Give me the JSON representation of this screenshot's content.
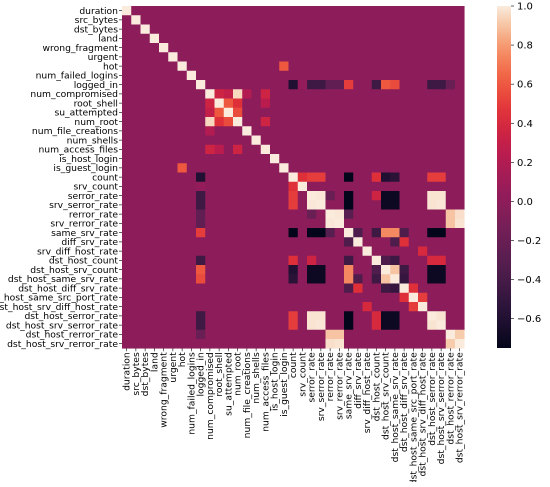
{
  "chart_data": {
    "type": "heatmap",
    "title": "",
    "xlabel": "",
    "ylabel": "",
    "labels": [
      "duration",
      "src_bytes",
      "dst_bytes",
      "land",
      "wrong_fragment",
      "urgent",
      "hot",
      "num_failed_logins",
      "logged_in",
      "num_compromised",
      "root_shell",
      "su_attempted",
      "num_root",
      "num_file_creations",
      "num_shells",
      "num_access_files",
      "is_host_login",
      "is_guest_login",
      "count",
      "srv_count",
      "serror_rate",
      "srv_serror_rate",
      "rerror_rate",
      "srv_rerror_rate",
      "same_srv_rate",
      "diff_srv_rate",
      "srv_diff_host_rate",
      "dst_host_count",
      "dst_host_srv_count",
      "dst_host_same_srv_rate",
      "dst_host_diff_srv_rate",
      "dst_host_same_src_port_rate",
      "dst_host_srv_diff_host_rate",
      "dst_host_serror_rate",
      "dst_host_srv_serror_rate",
      "dst_host_rerror_rate",
      "dst_host_srv_rerror_rate"
    ],
    "colorbar": {
      "min": -0.75,
      "max": 1.0,
      "ticks": [
        1.0,
        0.8,
        0.6,
        0.4,
        0.2,
        0.0,
        -0.2,
        -0.4,
        -0.6
      ],
      "tick_labels": [
        "1.0",
        "0.8",
        "0.6",
        "0.4",
        "0.2",
        "0.0",
        "−0.2",
        "−0.4",
        "−0.6"
      ]
    },
    "correlations": [
      {
        "a": "root_shell",
        "b": "su_attempted",
        "value": 0.6
      },
      {
        "a": "root_shell",
        "b": "num_root",
        "value": 0.45
      },
      {
        "a": "num_compromised",
        "b": "num_root",
        "value": 0.95
      },
      {
        "a": "num_compromised",
        "b": "root_shell",
        "value": 0.35
      },
      {
        "a": "num_compromised",
        "b": "su_attempted",
        "value": 0.3
      },
      {
        "a": "su_attempted",
        "b": "num_root",
        "value": 0.55
      },
      {
        "a": "num_compromised",
        "b": "num_access_files",
        "value": 0.35
      },
      {
        "a": "num_root",
        "b": "num_access_files",
        "value": 0.35
      },
      {
        "a": "root_shell",
        "b": "num_access_files",
        "value": 0.25
      },
      {
        "a": "num_compromised",
        "b": "num_file_creations",
        "value": 0.2
      },
      {
        "a": "hot",
        "b": "is_guest_login",
        "value": 0.6
      },
      {
        "a": "logged_in",
        "b": "count",
        "value": -0.6
      },
      {
        "a": "logged_in",
        "b": "srv_count",
        "value": 0.05
      },
      {
        "a": "logged_in",
        "b": "serror_rate",
        "value": -0.45
      },
      {
        "a": "logged_in",
        "b": "srv_serror_rate",
        "value": -0.45
      },
      {
        "a": "logged_in",
        "b": "rerror_rate",
        "value": -0.25
      },
      {
        "a": "logged_in",
        "b": "srv_rerror_rate",
        "value": -0.25
      },
      {
        "a": "logged_in",
        "b": "same_srv_rate",
        "value": 0.5
      },
      {
        "a": "logged_in",
        "b": "dst_host_count",
        "value": -0.45
      },
      {
        "a": "logged_in",
        "b": "dst_host_srv_count",
        "value": 0.6
      },
      {
        "a": "logged_in",
        "b": "dst_host_same_srv_rate",
        "value": 0.55
      },
      {
        "a": "logged_in",
        "b": "dst_host_serror_rate",
        "value": -0.45
      },
      {
        "a": "logged_in",
        "b": "dst_host_srv_serror_rate",
        "value": -0.45
      },
      {
        "a": "logged_in",
        "b": "dst_host_rerror_rate",
        "value": -0.2
      },
      {
        "a": "count",
        "b": "srv_count",
        "value": 0.45
      },
      {
        "a": "count",
        "b": "serror_rate",
        "value": 0.5
      },
      {
        "a": "count",
        "b": "srv_serror_rate",
        "value": 0.5
      },
      {
        "a": "count",
        "b": "same_srv_rate",
        "value": -0.75
      },
      {
        "a": "count",
        "b": "dst_host_count",
        "value": 0.45
      },
      {
        "a": "count",
        "b": "dst_host_srv_count",
        "value": -0.6
      },
      {
        "a": "count",
        "b": "dst_host_same_srv_rate",
        "value": -0.55
      },
      {
        "a": "count",
        "b": "dst_host_serror_rate",
        "value": 0.5
      },
      {
        "a": "count",
        "b": "dst_host_srv_serror_rate",
        "value": 0.5
      },
      {
        "a": "serror_rate",
        "b": "srv_serror_rate",
        "value": 0.99
      },
      {
        "a": "serror_rate",
        "b": "rerror_rate",
        "value": -0.2
      },
      {
        "a": "serror_rate",
        "b": "same_srv_rate",
        "value": -0.75
      },
      {
        "a": "serror_rate",
        "b": "dst_host_count",
        "value": 0.35
      },
      {
        "a": "serror_rate",
        "b": "dst_host_srv_count",
        "value": -0.7
      },
      {
        "a": "serror_rate",
        "b": "dst_host_same_srv_rate",
        "value": -0.7
      },
      {
        "a": "serror_rate",
        "b": "dst_host_serror_rate",
        "value": 0.98
      },
      {
        "a": "serror_rate",
        "b": "dst_host_srv_serror_rate",
        "value": 0.98
      },
      {
        "a": "srv_serror_rate",
        "b": "same_srv_rate",
        "value": -0.75
      },
      {
        "a": "srv_serror_rate",
        "b": "dst_host_srv_count",
        "value": -0.7
      },
      {
        "a": "srv_serror_rate",
        "b": "dst_host_same_srv_rate",
        "value": -0.7
      },
      {
        "a": "srv_serror_rate",
        "b": "dst_host_serror_rate",
        "value": 0.98
      },
      {
        "a": "srv_serror_rate",
        "b": "dst_host_srv_serror_rate",
        "value": 0.99
      },
      {
        "a": "rerror_rate",
        "b": "srv_rerror_rate",
        "value": 0.99
      },
      {
        "a": "rerror_rate",
        "b": "same_srv_rate",
        "value": -0.3
      },
      {
        "a": "rerror_rate",
        "b": "dst_host_rerror_rate",
        "value": 0.9
      },
      {
        "a": "rerror_rate",
        "b": "dst_host_srv_rerror_rate",
        "value": 0.97
      },
      {
        "a": "srv_rerror_rate",
        "b": "dst_host_rerror_rate",
        "value": 0.9
      },
      {
        "a": "srv_rerror_rate",
        "b": "dst_host_srv_rerror_rate",
        "value": 0.98
      },
      {
        "a": "same_srv_rate",
        "b": "diff_srv_rate",
        "value": -0.35
      },
      {
        "a": "same_srv_rate",
        "b": "dst_host_count",
        "value": -0.45
      },
      {
        "a": "same_srv_rate",
        "b": "dst_host_srv_count",
        "value": 0.75
      },
      {
        "a": "same_srv_rate",
        "b": "dst_host_same_srv_rate",
        "value": 0.75
      },
      {
        "a": "same_srv_rate",
        "b": "dst_host_diff_srv_rate",
        "value": -0.35
      },
      {
        "a": "same_srv_rate",
        "b": "dst_host_serror_rate",
        "value": -0.75
      },
      {
        "a": "same_srv_rate",
        "b": "dst_host_srv_serror_rate",
        "value": -0.75
      },
      {
        "a": "diff_srv_rate",
        "b": "dst_host_diff_srv_rate",
        "value": 0.45
      },
      {
        "a": "diff_srv_rate",
        "b": "dst_host_same_srv_rate",
        "value": -0.35
      },
      {
        "a": "srv_diff_host_rate",
        "b": "dst_host_srv_diff_host_rate",
        "value": 0.4
      },
      {
        "a": "dst_host_count",
        "b": "dst_host_srv_count",
        "value": -0.35
      },
      {
        "a": "dst_host_count",
        "b": "dst_host_same_srv_rate",
        "value": -0.45
      },
      {
        "a": "dst_host_count",
        "b": "dst_host_serror_rate",
        "value": 0.4
      },
      {
        "a": "dst_host_count",
        "b": "dst_host_srv_serror_rate",
        "value": 0.4
      },
      {
        "a": "dst_host_srv_count",
        "b": "dst_host_same_srv_rate",
        "value": 0.9
      },
      {
        "a": "dst_host_srv_count",
        "b": "dst_host_diff_srv_rate",
        "value": -0.45
      },
      {
        "a": "dst_host_srv_count",
        "b": "dst_host_serror_rate",
        "value": -0.7
      },
      {
        "a": "dst_host_srv_count",
        "b": "dst_host_srv_serror_rate",
        "value": -0.7
      },
      {
        "a": "dst_host_same_srv_rate",
        "b": "dst_host_diff_srv_rate",
        "value": -0.5
      },
      {
        "a": "dst_host_same_srv_rate",
        "b": "dst_host_serror_rate",
        "value": -0.7
      },
      {
        "a": "dst_host_same_srv_rate",
        "b": "dst_host_srv_serror_rate",
        "value": -0.7
      },
      {
        "a": "dst_host_diff_srv_rate",
        "b": "dst_host_same_src_port_rate",
        "value": 0.45
      },
      {
        "a": "dst_host_same_src_port_rate",
        "b": "dst_host_srv_diff_host_rate",
        "value": 0.5
      },
      {
        "a": "dst_host_serror_rate",
        "b": "dst_host_srv_serror_rate",
        "value": 0.98
      },
      {
        "a": "dst_host_rerror_rate",
        "b": "dst_host_srv_rerror_rate",
        "value": 0.92
      }
    ],
    "default_value": 0.0
  }
}
